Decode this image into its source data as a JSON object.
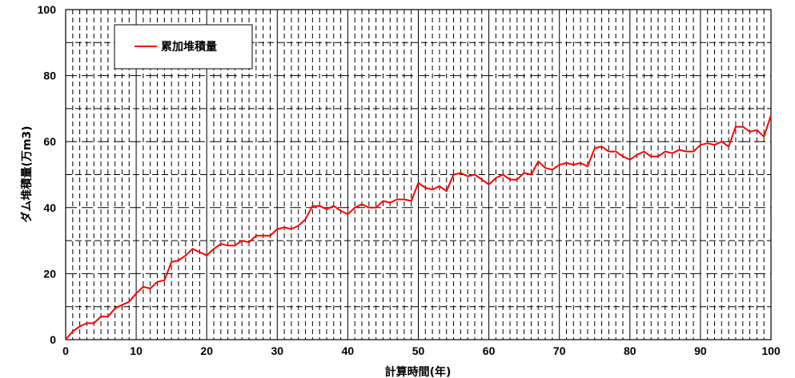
{
  "chart_data": {
    "type": "line",
    "title": "",
    "xlabel": "計算時間(年)",
    "ylabel": "ダム堆積量(万m3)",
    "xlim": [
      0,
      100
    ],
    "ylim": [
      0,
      100
    ],
    "xticks": [
      "0",
      "10",
      "20",
      "30",
      "40",
      "50",
      "60",
      "70",
      "80",
      "90",
      "100"
    ],
    "yticks": [
      "0",
      "20",
      "40",
      "60",
      "80",
      "100"
    ],
    "grid": true,
    "legend_position": "top-left",
    "series": [
      {
        "name": "累加堆積量",
        "color": "#ff0000",
        "x": [
          0,
          1,
          2,
          3,
          4,
          5,
          6,
          7,
          8,
          9,
          10,
          11,
          12,
          13,
          14,
          15,
          16,
          17,
          18,
          19,
          20,
          21,
          22,
          23,
          24,
          25,
          26,
          27,
          28,
          29,
          30,
          31,
          32,
          33,
          34,
          35,
          36,
          37,
          38,
          39,
          40,
          41,
          42,
          43,
          44,
          45,
          46,
          47,
          48,
          49,
          50,
          51,
          52,
          53,
          54,
          55,
          56,
          57,
          58,
          59,
          60,
          61,
          62,
          63,
          64,
          65,
          66,
          67,
          68,
          69,
          70,
          71,
          72,
          73,
          74,
          75,
          76,
          77,
          78,
          79,
          80,
          81,
          82,
          83,
          84,
          85,
          86,
          87,
          88,
          89,
          90,
          91,
          92,
          93,
          94,
          95,
          96,
          97,
          98,
          99,
          100
        ],
        "y": [
          0,
          2.5,
          4,
          5,
          5,
          7,
          7,
          9.5,
          10.5,
          11.5,
          14,
          16,
          15.5,
          17.5,
          18,
          23.5,
          24,
          25.5,
          27.5,
          26.5,
          25.5,
          27.5,
          29,
          28.5,
          28.5,
          30,
          29.5,
          31.5,
          31.5,
          31.5,
          33.5,
          34,
          33.5,
          34.5,
          36.5,
          40.5,
          40.5,
          39.5,
          40.5,
          39,
          38,
          40,
          41,
          40,
          40,
          42,
          41.5,
          42.5,
          42.5,
          42,
          47.5,
          46,
          45.5,
          46.5,
          45,
          50,
          50.5,
          49.5,
          50,
          48.5,
          47,
          49,
          50,
          48.5,
          48.5,
          50.5,
          50,
          54,
          52,
          51.5,
          53,
          53.5,
          53,
          53.5,
          52.5,
          58,
          58.5,
          57,
          57,
          55.5,
          54.5,
          56,
          57,
          55.5,
          55.5,
          57,
          56.5,
          57.5,
          57,
          57,
          59,
          59.5,
          59,
          60,
          58.5,
          64.5,
          64.5,
          63,
          63.5,
          61.5,
          68
        ]
      }
    ]
  }
}
